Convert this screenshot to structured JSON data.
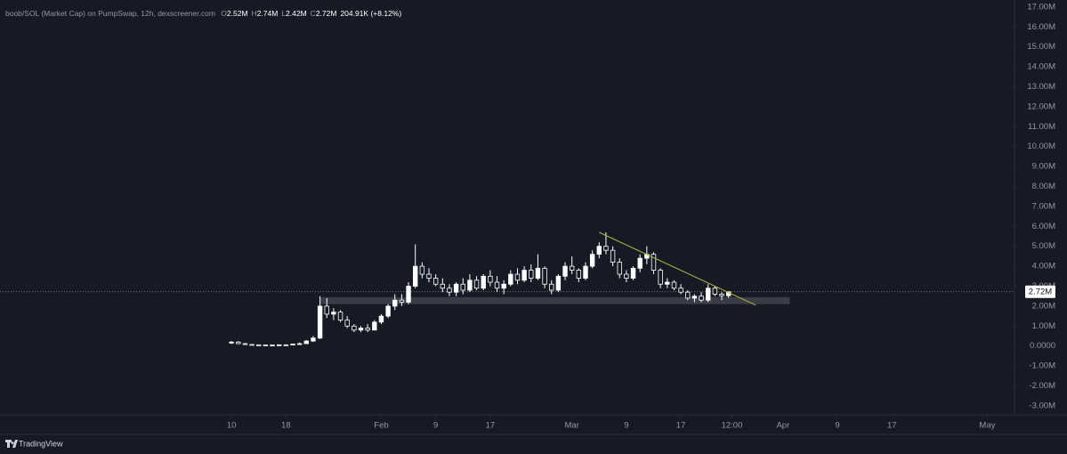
{
  "chart_data": {
    "type": "candlestick",
    "legend": {
      "symbol": "boob/SOL (Market Cap) on PumpSwap, 12h, dexscreener.com",
      "fields": [
        {
          "key": "O",
          "value": "2.52M"
        },
        {
          "key": "H",
          "value": "2.74M"
        },
        {
          "key": "L",
          "value": "2.42M"
        },
        {
          "key": "C",
          "value": "2.72M"
        }
      ],
      "change": "204.91K (+8.12%)"
    },
    "branding": "TradingView",
    "up_color": "#ffffff",
    "down_color": "#161a25",
    "wick_color": "#ffffff",
    "x": [
      "Jan 10",
      "Jan 11",
      "Jan 12",
      "Jan 13",
      "Jan 14",
      "Jan 15",
      "Jan 16",
      "Jan 17",
      "Jan 18",
      "Jan 19",
      "Jan 20",
      "Jan 21",
      "Jan 22",
      "Jan 23",
      "Jan 24",
      "Jan 25",
      "Jan 26",
      "Jan 27",
      "Jan 28",
      "Jan 29",
      "Jan 30",
      "Jan 31",
      "Feb 1",
      "Feb 2",
      "Feb 3",
      "Feb 4",
      "Feb 5",
      "Feb 6",
      "Feb 7",
      "Feb 8",
      "Feb 9",
      "Feb 10",
      "Feb 11",
      "Feb 12",
      "Feb 13",
      "Feb 14",
      "Feb 15",
      "Feb 16",
      "Feb 17",
      "Feb 18",
      "Feb 19",
      "Feb 20",
      "Feb 21",
      "Feb 22",
      "Feb 23",
      "Feb 24",
      "Feb 25",
      "Feb 26",
      "Feb 27",
      "Feb 28",
      "Mar 1",
      "Mar 2",
      "Mar 3",
      "Mar 4",
      "Mar 5",
      "Mar 6",
      "Mar 7",
      "Mar 8",
      "Mar 9",
      "Mar 10",
      "Mar 11",
      "Mar 12",
      "Mar 13",
      "Mar 14",
      "Mar 15",
      "Mar 16",
      "Mar 17",
      "Mar 18",
      "Mar 19",
      "Mar 20",
      "Mar 21",
      "Mar 22",
      "Mar 23",
      "Mar 24"
    ],
    "open": [
      0.15,
      0.2,
      0.12,
      0.08,
      0.06,
      0.05,
      0.04,
      0.05,
      0.06,
      0.05,
      0.1,
      0.12,
      0.25,
      0.4,
      2.0,
      1.6,
      1.7,
      1.3,
      1.0,
      0.8,
      0.9,
      0.8,
      1.2,
      1.5,
      2.0,
      2.3,
      2.2,
      3.0,
      4.0,
      3.6,
      3.4,
      3.1,
      2.9,
      2.7,
      3.1,
      2.8,
      3.3,
      2.9,
      3.5,
      3.2,
      2.9,
      3.1,
      3.6,
      3.3,
      3.8,
      3.4,
      3.9,
      3.1,
      2.8,
      3.5,
      4.0,
      3.8,
      3.4,
      4.0,
      4.6,
      5.0,
      4.8,
      4.2,
      3.6,
      3.4,
      3.9,
      4.4,
      4.6,
      3.8,
      3.1,
      3.2,
      2.9,
      2.7,
      2.4,
      2.5,
      2.3,
      2.9,
      2.6,
      2.52
    ],
    "high": [
      0.25,
      0.25,
      0.15,
      0.1,
      0.08,
      0.07,
      0.06,
      0.08,
      0.09,
      0.12,
      0.18,
      0.3,
      0.5,
      2.5,
      2.4,
      1.9,
      1.8,
      1.5,
      1.1,
      1.0,
      1.1,
      1.3,
      1.6,
      2.1,
      2.6,
      2.6,
      3.2,
      5.1,
      4.2,
      3.9,
      3.6,
      3.4,
      3.1,
      3.2,
      3.4,
      3.6,
      3.5,
      3.6,
      3.8,
      3.5,
      3.3,
      3.8,
      3.9,
      4.0,
      4.1,
      4.6,
      4.0,
      3.3,
      3.6,
      4.2,
      4.5,
      3.9,
      4.2,
      4.8,
      5.2,
      5.7,
      5.0,
      4.4,
      3.8,
      4.0,
      4.6,
      5.0,
      4.7,
      3.9,
      3.4,
      3.3,
      3.1,
      2.8,
      2.6,
      2.7,
      3.1,
      3.0,
      2.7,
      2.74
    ],
    "low": [
      0.1,
      0.1,
      0.05,
      0.03,
      0.02,
      0.02,
      0.02,
      0.03,
      0.03,
      0.04,
      0.06,
      0.1,
      0.2,
      0.35,
      1.4,
      1.3,
      1.2,
      0.9,
      0.7,
      0.7,
      0.7,
      0.8,
      1.1,
      1.4,
      1.8,
      2.0,
      2.1,
      2.9,
      3.4,
      3.2,
      3.0,
      2.7,
      2.5,
      2.5,
      2.6,
      2.7,
      2.8,
      2.8,
      3.0,
      2.7,
      2.6,
      3.0,
      3.1,
      3.2,
      3.2,
      3.3,
      2.9,
      2.6,
      2.7,
      3.3,
      3.6,
      3.2,
      3.3,
      3.9,
      4.4,
      4.6,
      4.0,
      3.4,
      3.2,
      3.3,
      3.7,
      4.1,
      3.6,
      2.9,
      2.9,
      2.8,
      2.6,
      2.3,
      2.2,
      2.2,
      2.2,
      2.5,
      2.3,
      2.42
    ],
    "close": [
      0.2,
      0.12,
      0.08,
      0.06,
      0.05,
      0.04,
      0.05,
      0.06,
      0.05,
      0.1,
      0.12,
      0.25,
      0.4,
      2.0,
      1.6,
      1.7,
      1.3,
      1.0,
      0.8,
      0.9,
      0.8,
      1.2,
      1.5,
      2.0,
      2.3,
      2.2,
      3.0,
      4.0,
      3.6,
      3.4,
      3.1,
      2.9,
      2.7,
      3.1,
      2.8,
      3.3,
      2.9,
      3.5,
      3.2,
      2.9,
      3.1,
      3.6,
      3.3,
      3.8,
      3.4,
      3.9,
      3.1,
      2.8,
      3.5,
      4.0,
      3.8,
      3.4,
      4.0,
      4.6,
      5.0,
      4.8,
      4.2,
      3.6,
      3.4,
      3.9,
      4.4,
      4.6,
      3.8,
      3.1,
      3.2,
      2.9,
      2.7,
      2.4,
      2.5,
      2.3,
      2.9,
      2.6,
      2.52,
      2.72
    ],
    "xlim": [
      "Dec 7",
      "May 5"
    ],
    "xticks": [
      {
        "value": "Jan 10",
        "label": "10"
      },
      {
        "value": "Jan 18",
        "label": "18"
      },
      {
        "value": "Feb 1",
        "label": "Feb"
      },
      {
        "value": "Feb 9",
        "label": "9"
      },
      {
        "value": "Feb 17",
        "label": "17"
      },
      {
        "value": "Mar 1",
        "label": "Mar"
      },
      {
        "value": "Mar 9",
        "label": "9"
      },
      {
        "value": "Mar 17",
        "label": "17"
      },
      {
        "value": "Mar 24 12:00",
        "label": "12:00"
      },
      {
        "value": "Apr 1",
        "label": "Apr"
      },
      {
        "value": "Apr 9",
        "label": "9"
      },
      {
        "value": "Apr 17",
        "label": "17"
      },
      {
        "value": "May 1",
        "label": "May"
      }
    ],
    "ylim": [
      -3.45,
      17.35
    ],
    "yticks": [
      {
        "value": 17,
        "label": "17.00M"
      },
      {
        "value": 16,
        "label": "16.00M"
      },
      {
        "value": 15,
        "label": "15.00M"
      },
      {
        "value": 14,
        "label": "14.00M"
      },
      {
        "value": 13,
        "label": "13.00M"
      },
      {
        "value": 12,
        "label": "12.00M"
      },
      {
        "value": 11,
        "label": "11.00M"
      },
      {
        "value": 10,
        "label": "10.00M"
      },
      {
        "value": 9,
        "label": "9.00M"
      },
      {
        "value": 8,
        "label": "8.00M"
      },
      {
        "value": 7,
        "label": "7.00M"
      },
      {
        "value": 6,
        "label": "6.00M"
      },
      {
        "value": 5,
        "label": "5.00M"
      },
      {
        "value": 4,
        "label": "4.00M"
      },
      {
        "value": 3,
        "label": "3.00M"
      },
      {
        "value": 2,
        "label": "2.00M"
      },
      {
        "value": 1,
        "label": "1.00M"
      },
      {
        "value": 0,
        "label": "0.0000"
      },
      {
        "value": -1,
        "label": "-1.00M"
      },
      {
        "value": -2,
        "label": "-2.00M"
      },
      {
        "value": -3,
        "label": "-3.00M"
      }
    ],
    "last_price": {
      "value": 2.72,
      "label": "2.72M"
    },
    "zone": {
      "x": [
        "Jan 23",
        "Apr 2"
      ],
      "y": [
        2.1,
        2.45
      ],
      "color": "#3a3d48"
    },
    "trendline": {
      "x": [
        "Mar 5",
        "Mar 28"
      ],
      "y": [
        5.7,
        2.05
      ],
      "color": "#b5b43c"
    }
  }
}
